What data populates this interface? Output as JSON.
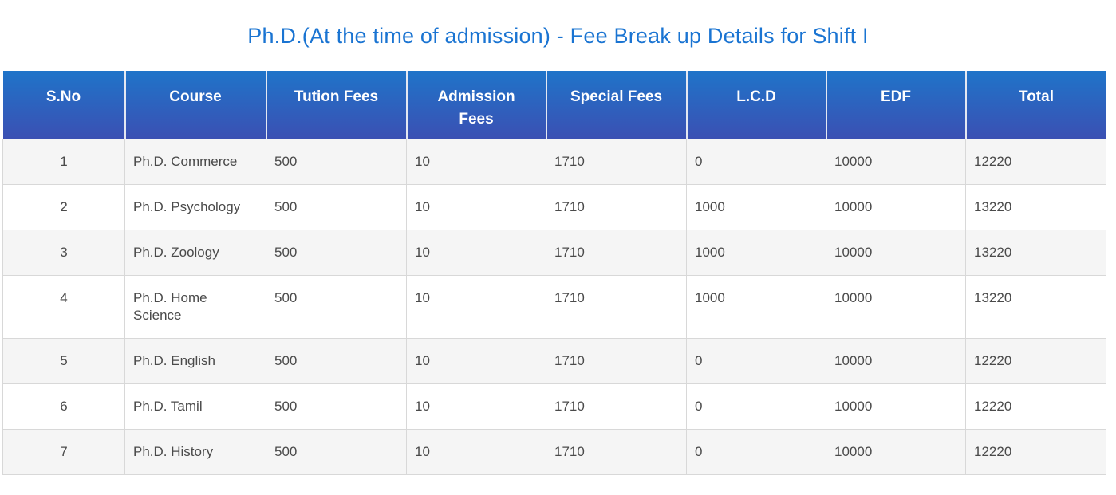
{
  "title": "Ph.D.(At the time of admission) - Fee Break up Details for Shift I",
  "table": {
    "columns": [
      "S.No",
      "Course",
      "Tution Fees",
      "Admission Fees",
      "Special Fees",
      "L.C.D",
      "EDF",
      "Total"
    ],
    "rows": [
      [
        "1",
        "Ph.D. Commerce",
        "500",
        "10",
        "1710",
        "0",
        "10000",
        "12220"
      ],
      [
        "2",
        "Ph.D. Psychology",
        "500",
        "10",
        "1710",
        "1000",
        "10000",
        "13220"
      ],
      [
        "3",
        "Ph.D. Zoology",
        "500",
        "10",
        "1710",
        "1000",
        "10000",
        "13220"
      ],
      [
        "4",
        "Ph.D. Home Science",
        "500",
        "10",
        "1710",
        "1000",
        "10000",
        "13220"
      ],
      [
        "5",
        "Ph.D. English",
        "500",
        "10",
        "1710",
        "0",
        "10000",
        "12220"
      ],
      [
        "6",
        "Ph.D. Tamil",
        "500",
        "10",
        "1710",
        "0",
        "10000",
        "12220"
      ],
      [
        "7",
        "Ph.D. History",
        "500",
        "10",
        "1710",
        "0",
        "10000",
        "12220"
      ]
    ]
  },
  "colors": {
    "title_text": "#1a74d2",
    "header_gradient_top": "#1f74c9",
    "header_gradient_bottom": "#3b50b3",
    "header_text": "#ffffff",
    "row_stripe": "#f5f5f5",
    "row_plain": "#ffffff",
    "cell_border": "#d8d8d8",
    "body_text": "#4a4a4a"
  }
}
